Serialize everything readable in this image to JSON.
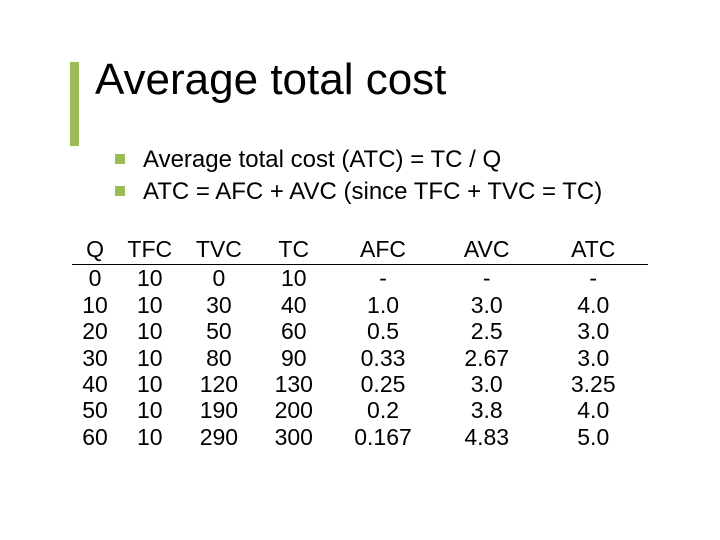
{
  "title": "Average total cost",
  "bullets": [
    "Average total cost (ATC) = TC / Q",
    "ATC = AFC + AVC (since TFC + TVC = TC)"
  ],
  "table": {
    "type": "table",
    "columns": [
      "Q",
      "TFC",
      "TVC",
      "TC",
      "AFC",
      "AVC",
      "ATC"
    ],
    "rows": [
      [
        "0",
        "10",
        "0",
        "10",
        "-",
        "-",
        "-"
      ],
      [
        "10",
        "10",
        "30",
        "40",
        "1.0",
        "3.0",
        "4.0"
      ],
      [
        "20",
        "10",
        "50",
        "60",
        "0.5",
        "2.5",
        "3.0"
      ],
      [
        "30",
        "10",
        "80",
        "90",
        "0.33",
        "2.67",
        "3.0"
      ],
      [
        "40",
        "10",
        "120",
        "130",
        "0.25",
        "3.0",
        "3.25"
      ],
      [
        "50",
        "10",
        "190",
        "200",
        "0.2",
        "3.8",
        "4.0"
      ],
      [
        "60",
        "10",
        "290",
        "300",
        "0.167",
        "4.83",
        "5.0"
      ]
    ],
    "col_widths_pct": [
      8,
      11,
      13,
      13,
      18,
      18,
      19
    ],
    "header_fontsize": 23,
    "cell_fontsize": 23,
    "border_color": "#000000",
    "text_color": "#000000"
  },
  "accent_color": "#9bba58",
  "background_color": "#ffffff",
  "title_fontsize": 44,
  "bullet_fontsize": 24
}
